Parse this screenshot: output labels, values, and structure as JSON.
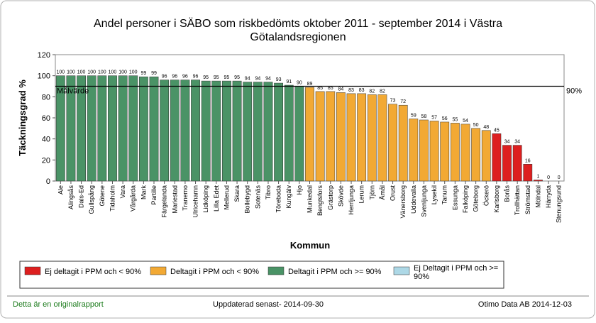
{
  "chart_data": {
    "type": "bar",
    "title": [
      "Andel personer i SÄBO som riskbedömts  oktober 2011 - september 2014 i Västra",
      "Götalandsregionen"
    ],
    "y_label": "Täckningsgrad %",
    "x_label": "Kommun",
    "categories": [
      "Ale",
      "Alingsås",
      "Dals-Ed",
      "Gullspång",
      "Götene",
      "Tidaholm",
      "Vara",
      "Vårgårda",
      "Mark",
      "Partille",
      "Färgelanda",
      "Mariestad",
      "Tranemo",
      "Ulricehamn",
      "Lidköping",
      "Lilla Edet",
      "Mellerud",
      "Skara",
      "Bollebygd",
      "Sotenäs",
      "Tibro",
      "Töreboda",
      "Kungälv",
      "Hjo",
      "Munkedal",
      "Bengtsfors",
      "Grästorp",
      "Skövde",
      "Herrljunga",
      "Lerum",
      "Tjörn",
      "Åmål",
      "Orust",
      "Vänersborg",
      "Uddevalla",
      "Svenljunga",
      "Lysekil",
      "Tanum",
      "Essunga",
      "Falköping",
      "Göteborg",
      "Öckerö",
      "Karlsborg",
      "Borås",
      "Trollhättan",
      "Strömstad",
      "Mölndal",
      "Härryda",
      "Stenungsund"
    ],
    "values": [
      100,
      100,
      100,
      100,
      100,
      100,
      100,
      100,
      99,
      99,
      96,
      96,
      96,
      96,
      95,
      95,
      95,
      95,
      94,
      94,
      94,
      93,
      91,
      90,
      89,
      85,
      85,
      84,
      83,
      83,
      82,
      82,
      73,
      72,
      59,
      58,
      57,
      56,
      55,
      54,
      50,
      48,
      45,
      34,
      34,
      16,
      1,
      0,
      0
    ],
    "groups": [
      2,
      2,
      2,
      2,
      2,
      2,
      2,
      2,
      2,
      2,
      2,
      2,
      2,
      2,
      2,
      2,
      2,
      2,
      2,
      2,
      2,
      2,
      2,
      2,
      1,
      1,
      1,
      1,
      1,
      1,
      1,
      1,
      1,
      1,
      1,
      1,
      1,
      1,
      1,
      1,
      1,
      1,
      0,
      0,
      0,
      0,
      0,
      0,
      0
    ],
    "legend": [
      {
        "name": "Ej deltagit i PPM och < 90%",
        "color": "#dd1f1f"
      },
      {
        "name": "Deltagit i PPM och < 90%",
        "color": "#f2a934"
      },
      {
        "name": "Deltagit i PPM och >= 90%",
        "color": "#4a9366"
      },
      {
        "name": "Ej Deltagit i PPM och >= 90%",
        "color": "#add8e6"
      }
    ],
    "target": 90,
    "target_label": "Målvärde",
    "target_value_label": "90%",
    "ylim": [
      0,
      120
    ],
    "yticks": [
      0,
      20,
      40,
      60,
      80,
      100,
      120
    ]
  },
  "footer": {
    "left": "Detta är en originalrapport",
    "center": "Uppdaterad senast- 2014-09-30",
    "right": "Otimo Data AB 2014-12-03"
  }
}
